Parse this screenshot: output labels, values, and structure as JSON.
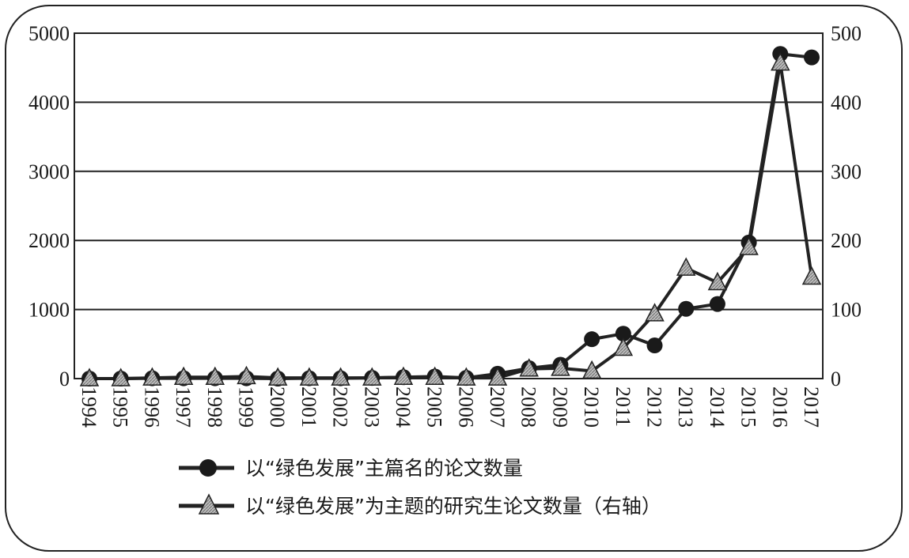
{
  "chart_data": {
    "type": "line",
    "x": [
      "1994",
      "1995",
      "1996",
      "1997",
      "1998",
      "1999",
      "2000",
      "2001",
      "2002",
      "2003",
      "2004",
      "2005",
      "2006",
      "2007",
      "2008",
      "2009",
      "2010",
      "2011",
      "2012",
      "2013",
      "2014",
      "2015",
      "2016",
      "2017"
    ],
    "series": [
      {
        "name": "以“绿色发展”主篇名的论文数量",
        "axis": "left",
        "marker": "circle",
        "values": [
          0,
          0,
          5,
          5,
          5,
          5,
          0,
          5,
          5,
          10,
          20,
          30,
          10,
          70,
          150,
          200,
          570,
          650,
          480,
          1010,
          1080,
          1970,
          4700,
          4650
        ]
      },
      {
        "name": "以“绿色发展”为主题的研究生论文数量（右轴）",
        "axis": "right",
        "marker": "triangle",
        "values": [
          0,
          0,
          1,
          2,
          2,
          3,
          1,
          1,
          1,
          1,
          2,
          2,
          1,
          1,
          14,
          15,
          11,
          44,
          94,
          160,
          139,
          190,
          457,
          147
        ]
      }
    ],
    "y_left": {
      "ticks": [
        "0",
        "1000",
        "2000",
        "3000",
        "4000",
        "5000"
      ],
      "ylim": [
        0,
        5000
      ]
    },
    "y_right": {
      "ticks": [
        "0",
        "100",
        "200",
        "300",
        "400",
        "500"
      ],
      "ylim": [
        0,
        500
      ]
    },
    "grid": "horizontal",
    "legend_position": "bottom",
    "colors": {
      "line": "#222222",
      "marker_circle": "#1a1a1a",
      "marker_triangle": "#9a9a9a",
      "grid": "#222222"
    }
  }
}
